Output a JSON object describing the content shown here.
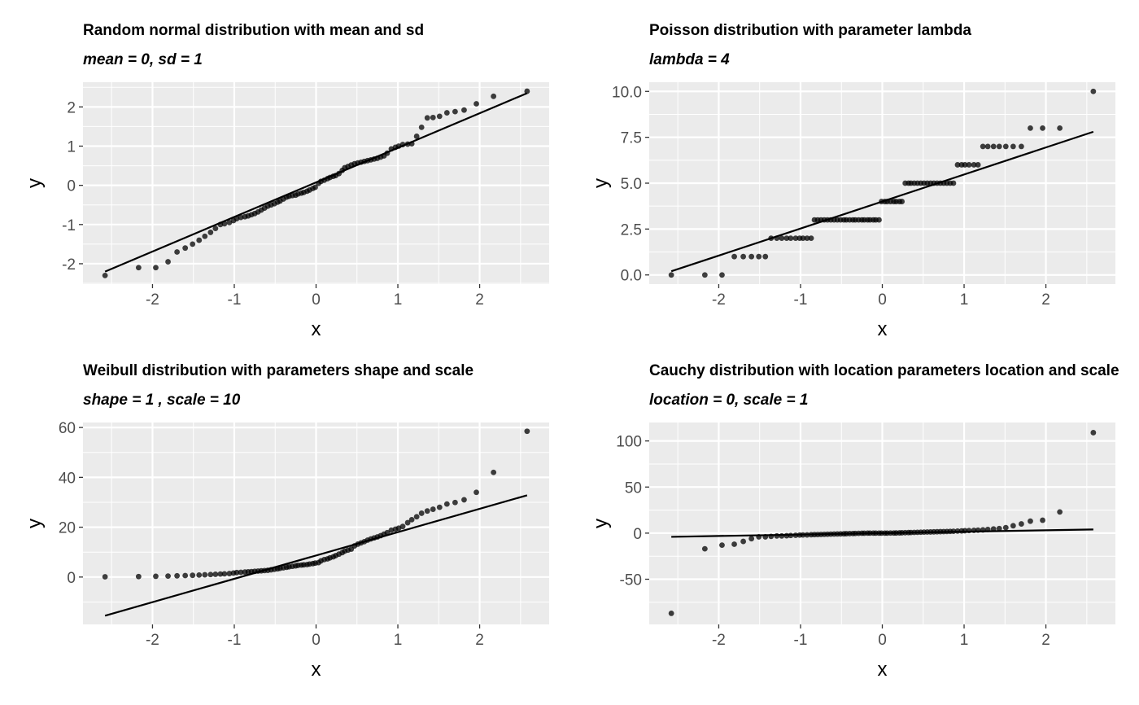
{
  "chart_data": [
    {
      "type": "scatter",
      "title": "Random normal distribution with mean and sd",
      "subtitle": "mean = 0, sd = 1",
      "xlabel": "x",
      "ylabel": "y",
      "xlim": [
        -2.85,
        2.85
      ],
      "ylim": [
        -2.52,
        2.63
      ],
      "xticks": [
        -2,
        -1,
        0,
        1,
        2
      ],
      "xtick_labels": [
        "-2",
        "-1",
        "0",
        "1",
        "2"
      ],
      "yticks": [
        -2,
        -1,
        0,
        1,
        2
      ],
      "ytick_labels": [
        "-2",
        "-1",
        "0",
        "1",
        "2"
      ],
      "grid": true,
      "reference_line": [
        [
          -2.58,
          -2.2
        ],
        [
          2.58,
          2.35
        ]
      ],
      "points": [
        [
          -2.58,
          -2.3
        ],
        [
          -2.17,
          -2.1
        ],
        [
          -1.96,
          -2.1
        ],
        [
          -1.81,
          -1.95
        ],
        [
          -1.7,
          -1.7
        ],
        [
          -1.6,
          -1.6
        ],
        [
          -1.51,
          -1.5
        ],
        [
          -1.43,
          -1.4
        ],
        [
          -1.36,
          -1.3
        ],
        [
          -1.29,
          -1.2
        ],
        [
          -1.23,
          -1.1
        ],
        [
          -1.17,
          -1.0
        ],
        [
          -1.12,
          -0.98
        ],
        [
          -1.06,
          -0.95
        ],
        [
          -1.01,
          -0.9
        ],
        [
          -0.97,
          -0.85
        ],
        [
          -0.92,
          -0.82
        ],
        [
          -0.87,
          -0.8
        ],
        [
          -0.83,
          -0.78
        ],
        [
          -0.79,
          -0.75
        ],
        [
          -0.75,
          -0.72
        ],
        [
          -0.71,
          -0.68
        ],
        [
          -0.67,
          -0.63
        ],
        [
          -0.63,
          -0.58
        ],
        [
          -0.59,
          -0.53
        ],
        [
          -0.55,
          -0.5
        ],
        [
          -0.51,
          -0.47
        ],
        [
          -0.47,
          -0.43
        ],
        [
          -0.44,
          -0.4
        ],
        [
          -0.4,
          -0.35
        ],
        [
          -0.36,
          -0.3
        ],
        [
          -0.33,
          -0.28
        ],
        [
          -0.29,
          -0.26
        ],
        [
          -0.25,
          -0.25
        ],
        [
          -0.22,
          -0.22
        ],
        [
          -0.18,
          -0.2
        ],
        [
          -0.15,
          -0.18
        ],
        [
          -0.11,
          -0.15
        ],
        [
          -0.08,
          -0.12
        ],
        [
          -0.04,
          -0.08
        ],
        [
          -0.01,
          -0.05
        ],
        [
          0.03,
          0.05
        ],
        [
          0.06,
          0.1
        ],
        [
          0.1,
          0.13
        ],
        [
          0.14,
          0.17
        ],
        [
          0.17,
          0.2
        ],
        [
          0.21,
          0.23
        ],
        [
          0.24,
          0.25
        ],
        [
          0.28,
          0.3
        ],
        [
          0.32,
          0.38
        ],
        [
          0.35,
          0.45
        ],
        [
          0.39,
          0.48
        ],
        [
          0.43,
          0.52
        ],
        [
          0.47,
          0.55
        ],
        [
          0.51,
          0.57
        ],
        [
          0.55,
          0.59
        ],
        [
          0.59,
          0.61
        ],
        [
          0.63,
          0.63
        ],
        [
          0.67,
          0.65
        ],
        [
          0.71,
          0.67
        ],
        [
          0.75,
          0.69
        ],
        [
          0.79,
          0.72
        ],
        [
          0.83,
          0.75
        ],
        [
          0.87,
          0.82
        ],
        [
          0.92,
          0.93
        ],
        [
          0.97,
          0.97
        ],
        [
          1.01,
          1.0
        ],
        [
          1.06,
          1.04
        ],
        [
          1.12,
          1.05
        ],
        [
          1.17,
          1.06
        ],
        [
          1.23,
          1.25
        ],
        [
          1.29,
          1.48
        ],
        [
          1.36,
          1.72
        ],
        [
          1.43,
          1.73
        ],
        [
          1.51,
          1.76
        ],
        [
          1.6,
          1.85
        ],
        [
          1.7,
          1.88
        ],
        [
          1.81,
          1.92
        ],
        [
          1.96,
          2.08
        ],
        [
          2.17,
          2.27
        ],
        [
          2.58,
          2.4
        ]
      ]
    },
    {
      "type": "scatter",
      "title": "Poisson distribution with parameter lambda",
      "subtitle": "lambda = 4",
      "xlabel": "x",
      "ylabel": "y",
      "xlim": [
        -2.85,
        2.85
      ],
      "ylim": [
        -0.5,
        10.5
      ],
      "xticks": [
        -2,
        -1,
        0,
        1,
        2
      ],
      "xtick_labels": [
        "-2",
        "-1",
        "0",
        "1",
        "2"
      ],
      "yticks": [
        0,
        2.5,
        5,
        7.5,
        10
      ],
      "ytick_labels": [
        "0.0",
        "2.5",
        "5.0",
        "7.5",
        "10.0"
      ],
      "grid": true,
      "reference_line": [
        [
          -2.58,
          0.2
        ],
        [
          2.58,
          7.8
        ]
      ],
      "points": [
        [
          -2.58,
          0
        ],
        [
          -2.17,
          0
        ],
        [
          -1.96,
          0
        ],
        [
          -1.81,
          1
        ],
        [
          -1.7,
          1
        ],
        [
          -1.6,
          1
        ],
        [
          -1.51,
          1
        ],
        [
          -1.43,
          1
        ],
        [
          -1.36,
          2
        ],
        [
          -1.29,
          2
        ],
        [
          -1.23,
          2
        ],
        [
          -1.17,
          2
        ],
        [
          -1.12,
          2
        ],
        [
          -1.06,
          2
        ],
        [
          -1.01,
          2
        ],
        [
          -0.97,
          2
        ],
        [
          -0.92,
          2
        ],
        [
          -0.87,
          2
        ],
        [
          -0.83,
          3
        ],
        [
          -0.79,
          3
        ],
        [
          -0.75,
          3
        ],
        [
          -0.71,
          3
        ],
        [
          -0.67,
          3
        ],
        [
          -0.63,
          3
        ],
        [
          -0.59,
          3
        ],
        [
          -0.55,
          3
        ],
        [
          -0.51,
          3
        ],
        [
          -0.47,
          3
        ],
        [
          -0.44,
          3
        ],
        [
          -0.4,
          3
        ],
        [
          -0.36,
          3
        ],
        [
          -0.33,
          3
        ],
        [
          -0.29,
          3
        ],
        [
          -0.25,
          3
        ],
        [
          -0.22,
          3
        ],
        [
          -0.18,
          3
        ],
        [
          -0.15,
          3
        ],
        [
          -0.11,
          3
        ],
        [
          -0.08,
          3
        ],
        [
          -0.04,
          3
        ],
        [
          -0.01,
          4
        ],
        [
          0.03,
          4
        ],
        [
          0.06,
          4
        ],
        [
          0.1,
          4
        ],
        [
          0.14,
          4
        ],
        [
          0.17,
          4
        ],
        [
          0.21,
          4
        ],
        [
          0.24,
          4
        ],
        [
          0.28,
          5
        ],
        [
          0.32,
          5
        ],
        [
          0.35,
          5
        ],
        [
          0.39,
          5
        ],
        [
          0.43,
          5
        ],
        [
          0.47,
          5
        ],
        [
          0.51,
          5
        ],
        [
          0.55,
          5
        ],
        [
          0.59,
          5
        ],
        [
          0.63,
          5
        ],
        [
          0.67,
          5
        ],
        [
          0.71,
          5
        ],
        [
          0.75,
          5
        ],
        [
          0.79,
          5
        ],
        [
          0.83,
          5
        ],
        [
          0.87,
          5
        ],
        [
          0.92,
          6
        ],
        [
          0.97,
          6
        ],
        [
          1.01,
          6
        ],
        [
          1.06,
          6
        ],
        [
          1.12,
          6
        ],
        [
          1.17,
          6
        ],
        [
          1.23,
          7
        ],
        [
          1.29,
          7
        ],
        [
          1.36,
          7
        ],
        [
          1.43,
          7
        ],
        [
          1.51,
          7
        ],
        [
          1.6,
          7
        ],
        [
          1.7,
          7
        ],
        [
          1.81,
          8
        ],
        [
          1.96,
          8
        ],
        [
          2.17,
          8
        ],
        [
          2.58,
          10
        ]
      ]
    },
    {
      "type": "scatter",
      "title": "Weibull distribution with parameters shape and scale",
      "subtitle": "shape = 1 , scale = 10",
      "xlabel": "x",
      "ylabel": "y",
      "xlim": [
        -2.85,
        2.85
      ],
      "ylim": [
        -19,
        62
      ],
      "xticks": [
        -2,
        -1,
        0,
        1,
        2
      ],
      "xtick_labels": [
        "-2",
        "-1",
        "0",
        "1",
        "2"
      ],
      "yticks": [
        0,
        20,
        40,
        60
      ],
      "ytick_labels": [
        "0",
        "20",
        "40",
        "60"
      ],
      "grid": true,
      "reference_line": [
        [
          -2.58,
          -15.5
        ],
        [
          2.58,
          32.8
        ]
      ],
      "points": [
        [
          -2.58,
          0.1
        ],
        [
          -2.17,
          0.2
        ],
        [
          -1.96,
          0.3
        ],
        [
          -1.81,
          0.4
        ],
        [
          -1.7,
          0.5
        ],
        [
          -1.6,
          0.6
        ],
        [
          -1.51,
          0.7
        ],
        [
          -1.43,
          0.8
        ],
        [
          -1.36,
          0.9
        ],
        [
          -1.29,
          1.0
        ],
        [
          -1.23,
          1.1
        ],
        [
          -1.17,
          1.2
        ],
        [
          -1.12,
          1.3
        ],
        [
          -1.06,
          1.4
        ],
        [
          -1.01,
          1.6
        ],
        [
          -0.97,
          1.8
        ],
        [
          -0.92,
          1.9
        ],
        [
          -0.87,
          2.0
        ],
        [
          -0.83,
          2.1
        ],
        [
          -0.79,
          2.2
        ],
        [
          -0.75,
          2.3
        ],
        [
          -0.71,
          2.4
        ],
        [
          -0.67,
          2.5
        ],
        [
          -0.63,
          2.6
        ],
        [
          -0.59,
          2.7
        ],
        [
          -0.55,
          2.9
        ],
        [
          -0.51,
          3.1
        ],
        [
          -0.47,
          3.3
        ],
        [
          -0.44,
          3.5
        ],
        [
          -0.4,
          3.7
        ],
        [
          -0.36,
          3.9
        ],
        [
          -0.33,
          4.1
        ],
        [
          -0.29,
          4.3
        ],
        [
          -0.25,
          4.5
        ],
        [
          -0.22,
          4.7
        ],
        [
          -0.18,
          4.8
        ],
        [
          -0.15,
          4.9
        ],
        [
          -0.11,
          5.0
        ],
        [
          -0.08,
          5.2
        ],
        [
          -0.04,
          5.4
        ],
        [
          -0.01,
          5.6
        ],
        [
          0.03,
          5.8
        ],
        [
          0.06,
          6.5
        ],
        [
          0.1,
          7.0
        ],
        [
          0.14,
          7.3
        ],
        [
          0.17,
          7.7
        ],
        [
          0.21,
          8.1
        ],
        [
          0.24,
          8.6
        ],
        [
          0.28,
          9.2
        ],
        [
          0.32,
          9.8
        ],
        [
          0.35,
          10.4
        ],
        [
          0.39,
          10.8
        ],
        [
          0.43,
          11.2
        ],
        [
          0.47,
          12.5
        ],
        [
          0.51,
          13.2
        ],
        [
          0.55,
          13.7
        ],
        [
          0.59,
          14.2
        ],
        [
          0.63,
          14.8
        ],
        [
          0.67,
          15.3
        ],
        [
          0.71,
          15.7
        ],
        [
          0.75,
          16.1
        ],
        [
          0.79,
          16.6
        ],
        [
          0.83,
          17.2
        ],
        [
          0.87,
          17.8
        ],
        [
          0.92,
          18.8
        ],
        [
          0.97,
          19.2
        ],
        [
          1.01,
          19.6
        ],
        [
          1.06,
          20.3
        ],
        [
          1.12,
          21.8
        ],
        [
          1.17,
          23.0
        ],
        [
          1.23,
          24.2
        ],
        [
          1.29,
          25.6
        ],
        [
          1.36,
          26.5
        ],
        [
          1.43,
          27.2
        ],
        [
          1.51,
          28.0
        ],
        [
          1.6,
          29.3
        ],
        [
          1.7,
          29.9
        ],
        [
          1.81,
          31.0
        ],
        [
          1.96,
          34.0
        ],
        [
          2.17,
          42.0
        ],
        [
          2.58,
          58.5
        ]
      ]
    },
    {
      "type": "scatter",
      "title": "Cauchy distribution with location parameters location and scale",
      "subtitle": "location = 0, scale = 1",
      "xlabel": "x",
      "ylabel": "y",
      "xlim": [
        -2.85,
        2.85
      ],
      "ylim": [
        -99,
        120
      ],
      "xticks": [
        -2,
        -1,
        0,
        1,
        2
      ],
      "xtick_labels": [
        "-2",
        "-1",
        "0",
        "1",
        "2"
      ],
      "yticks": [
        -50,
        0,
        50,
        100
      ],
      "ytick_labels": [
        "-50",
        "0",
        "50",
        "100"
      ],
      "grid": true,
      "reference_line": [
        [
          -2.58,
          -4
        ],
        [
          2.58,
          4
        ]
      ],
      "points": [
        [
          -2.58,
          -87
        ],
        [
          -2.17,
          -17
        ],
        [
          -1.96,
          -13
        ],
        [
          -1.81,
          -12
        ],
        [
          -1.7,
          -9
        ],
        [
          -1.6,
          -6
        ],
        [
          -1.51,
          -4
        ],
        [
          -1.43,
          -4
        ],
        [
          -1.36,
          -3.5
        ],
        [
          -1.29,
          -3
        ],
        [
          -1.23,
          -3
        ],
        [
          -1.17,
          -2.8
        ],
        [
          -1.12,
          -2.5
        ],
        [
          -1.06,
          -2.3
        ],
        [
          -1.01,
          -2.1
        ],
        [
          -0.97,
          -2
        ],
        [
          -0.92,
          -1.9
        ],
        [
          -0.87,
          -1.7
        ],
        [
          -0.83,
          -1.6
        ],
        [
          -0.79,
          -1.5
        ],
        [
          -0.75,
          -1.4
        ],
        [
          -0.71,
          -1.3
        ],
        [
          -0.67,
          -1.2
        ],
        [
          -0.63,
          -1.1
        ],
        [
          -0.59,
          -1.0
        ],
        [
          -0.55,
          -0.9
        ],
        [
          -0.51,
          -0.8
        ],
        [
          -0.47,
          -0.7
        ],
        [
          -0.44,
          -0.6
        ],
        [
          -0.4,
          -0.5
        ],
        [
          -0.36,
          -0.4
        ],
        [
          -0.33,
          -0.3
        ],
        [
          -0.29,
          -0.2
        ],
        [
          -0.25,
          -0.1
        ],
        [
          -0.22,
          -0.1
        ],
        [
          -0.18,
          0
        ],
        [
          -0.15,
          0
        ],
        [
          -0.11,
          0
        ],
        [
          -0.08,
          0
        ],
        [
          -0.04,
          0
        ],
        [
          -0.01,
          0
        ],
        [
          0.03,
          0
        ],
        [
          0.06,
          0
        ],
        [
          0.1,
          0.1
        ],
        [
          0.14,
          0.1
        ],
        [
          0.17,
          0.2
        ],
        [
          0.21,
          0.3
        ],
        [
          0.24,
          0.4
        ],
        [
          0.28,
          0.5
        ],
        [
          0.32,
          0.6
        ],
        [
          0.35,
          0.7
        ],
        [
          0.39,
          0.8
        ],
        [
          0.43,
          0.9
        ],
        [
          0.47,
          1.0
        ],
        [
          0.51,
          1.1
        ],
        [
          0.55,
          1.2
        ],
        [
          0.59,
          1.3
        ],
        [
          0.63,
          1.4
        ],
        [
          0.67,
          1.5
        ],
        [
          0.71,
          1.6
        ],
        [
          0.75,
          1.7
        ],
        [
          0.79,
          1.8
        ],
        [
          0.83,
          1.9
        ],
        [
          0.87,
          2.0
        ],
        [
          0.92,
          2.2
        ],
        [
          0.97,
          2.4
        ],
        [
          1.01,
          2.6
        ],
        [
          1.06,
          2.8
        ],
        [
          1.12,
          3.0
        ],
        [
          1.17,
          3.2
        ],
        [
          1.23,
          3.5
        ],
        [
          1.29,
          4
        ],
        [
          1.36,
          4.5
        ],
        [
          1.43,
          5
        ],
        [
          1.51,
          6
        ],
        [
          1.6,
          8
        ],
        [
          1.7,
          10
        ],
        [
          1.81,
          13
        ],
        [
          1.96,
          14
        ],
        [
          2.17,
          23
        ],
        [
          2.58,
          109
        ]
      ]
    }
  ]
}
